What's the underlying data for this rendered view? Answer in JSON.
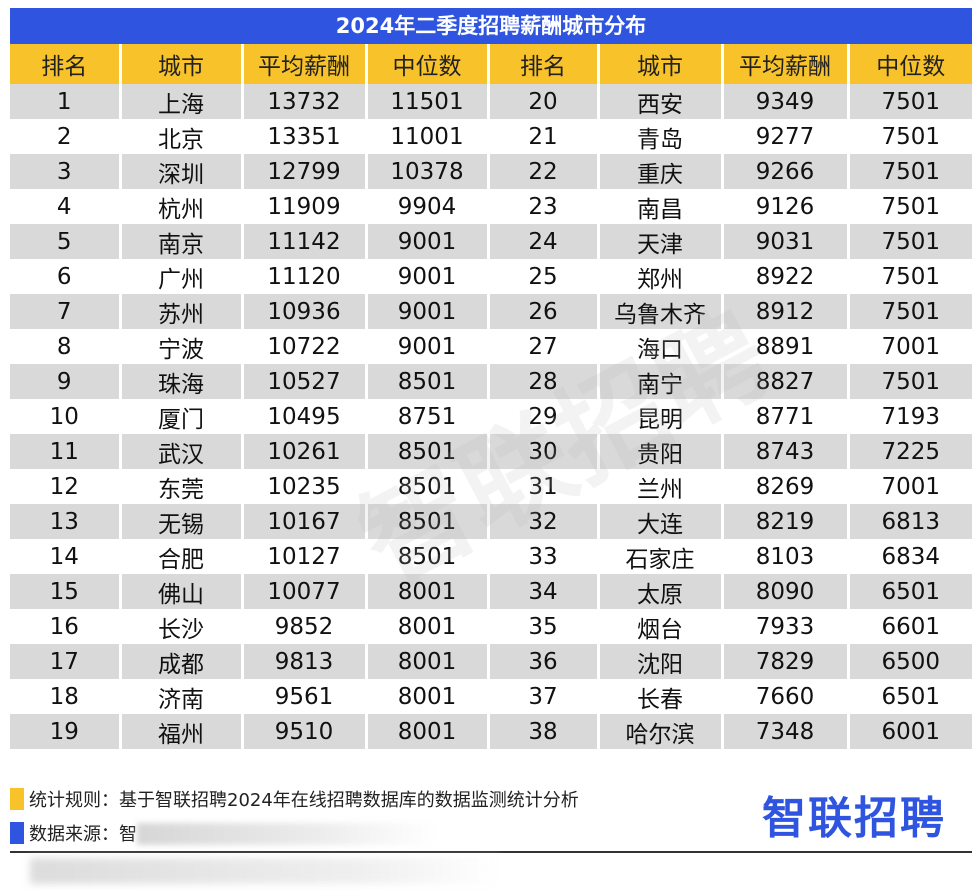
{
  "title": "2024年二季度招聘薪酬城市分布",
  "colors": {
    "title_bg": "#2f55e0",
    "header_bg": "#f7c22a",
    "row_alt": "#d9d9d9",
    "logo": "#2f55e0"
  },
  "watermark": "智联招聘",
  "headers": [
    "排名",
    "城市",
    "平均薪酬",
    "中位数",
    "排名",
    "城市",
    "平均薪酬",
    "中位数"
  ],
  "chart_data": {
    "type": "table",
    "title": "2024年二季度招聘薪酬城市分布",
    "columns": [
      "排名",
      "城市",
      "平均薪酬",
      "中位数"
    ],
    "rows": [
      {
        "rank": "1",
        "city": "上海",
        "avg": "13732",
        "median": "11501"
      },
      {
        "rank": "2",
        "city": "北京",
        "avg": "13351",
        "median": "11001"
      },
      {
        "rank": "3",
        "city": "深圳",
        "avg": "12799",
        "median": "10378"
      },
      {
        "rank": "4",
        "city": "杭州",
        "avg": "11909",
        "median": "9904"
      },
      {
        "rank": "5",
        "city": "南京",
        "avg": "11142",
        "median": "9001"
      },
      {
        "rank": "6",
        "city": "广州",
        "avg": "11120",
        "median": "9001"
      },
      {
        "rank": "7",
        "city": "苏州",
        "avg": "10936",
        "median": "9001"
      },
      {
        "rank": "8",
        "city": "宁波",
        "avg": "10722",
        "median": "9001"
      },
      {
        "rank": "9",
        "city": "珠海",
        "avg": "10527",
        "median": "8501"
      },
      {
        "rank": "10",
        "city": "厦门",
        "avg": "10495",
        "median": "8751"
      },
      {
        "rank": "11",
        "city": "武汉",
        "avg": "10261",
        "median": "8501"
      },
      {
        "rank": "12",
        "city": "东莞",
        "avg": "10235",
        "median": "8501"
      },
      {
        "rank": "13",
        "city": "无锡",
        "avg": "10167",
        "median": "8501"
      },
      {
        "rank": "14",
        "city": "合肥",
        "avg": "10127",
        "median": "8501"
      },
      {
        "rank": "15",
        "city": "佛山",
        "avg": "10077",
        "median": "8001"
      },
      {
        "rank": "16",
        "city": "长沙",
        "avg": "9852",
        "median": "8001"
      },
      {
        "rank": "17",
        "city": "成都",
        "avg": "9813",
        "median": "8001"
      },
      {
        "rank": "18",
        "city": "济南",
        "avg": "9561",
        "median": "8001"
      },
      {
        "rank": "19",
        "city": "福州",
        "avg": "9510",
        "median": "8001"
      },
      {
        "rank": "20",
        "city": "西安",
        "avg": "9349",
        "median": "7501"
      },
      {
        "rank": "21",
        "city": "青岛",
        "avg": "9277",
        "median": "7501"
      },
      {
        "rank": "22",
        "city": "重庆",
        "avg": "9266",
        "median": "7501"
      },
      {
        "rank": "23",
        "city": "南昌",
        "avg": "9126",
        "median": "7501"
      },
      {
        "rank": "24",
        "city": "天津",
        "avg": "9031",
        "median": "7501"
      },
      {
        "rank": "25",
        "city": "郑州",
        "avg": "8922",
        "median": "7501"
      },
      {
        "rank": "26",
        "city": "乌鲁木齐",
        "avg": "8912",
        "median": "7501"
      },
      {
        "rank": "27",
        "city": "海口",
        "avg": "8891",
        "median": "7001"
      },
      {
        "rank": "28",
        "city": "南宁",
        "avg": "8827",
        "median": "7501"
      },
      {
        "rank": "29",
        "city": "昆明",
        "avg": "8771",
        "median": "7193"
      },
      {
        "rank": "30",
        "city": "贵阳",
        "avg": "8743",
        "median": "7225"
      },
      {
        "rank": "31",
        "city": "兰州",
        "avg": "8269",
        "median": "7001"
      },
      {
        "rank": "32",
        "city": "大连",
        "avg": "8219",
        "median": "6813"
      },
      {
        "rank": "33",
        "city": "石家庄",
        "avg": "8103",
        "median": "6834"
      },
      {
        "rank": "34",
        "city": "太原",
        "avg": "8090",
        "median": "6501"
      },
      {
        "rank": "35",
        "city": "烟台",
        "avg": "7933",
        "median": "6601"
      },
      {
        "rank": "36",
        "city": "沈阳",
        "avg": "7829",
        "median": "6500"
      },
      {
        "rank": "37",
        "city": "长春",
        "avg": "7660",
        "median": "6501"
      },
      {
        "rank": "38",
        "city": "哈尔滨",
        "avg": "7348",
        "median": "6001"
      }
    ]
  },
  "footer": {
    "rule_text": "统计规则：基于智联招聘2024年在线招聘数据库的数据监测统计分析",
    "source_label": "数据来源：",
    "source_visible": "智",
    "logo": "智联招聘"
  }
}
